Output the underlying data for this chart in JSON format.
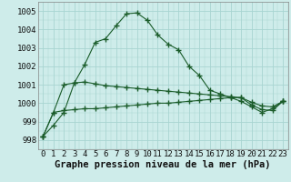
{
  "background_color": "#ceecea",
  "grid_color": "#a8d5d1",
  "line_color": "#1a5c2a",
  "marker_color": "#1a5c2a",
  "xlabel": "Graphe pression niveau de la mer (hPa)",
  "xlabel_fontsize": 7.5,
  "tick_fontsize": 6.5,
  "ylim": [
    997.5,
    1005.5
  ],
  "yticks": [
    998,
    999,
    1000,
    1001,
    1002,
    1003,
    1004,
    1005
  ],
  "xlim": [
    -0.5,
    23.5
  ],
  "xticks": [
    0,
    1,
    2,
    3,
    4,
    5,
    6,
    7,
    8,
    9,
    10,
    11,
    12,
    13,
    14,
    15,
    16,
    17,
    18,
    19,
    20,
    21,
    22,
    23
  ],
  "series1": [
    998.2,
    998.8,
    999.5,
    1001.1,
    1002.1,
    1003.3,
    1003.5,
    1004.2,
    1004.85,
    1004.9,
    1004.5,
    1003.7,
    1003.2,
    1002.9,
    1002.0,
    1001.5,
    1000.7,
    1000.5,
    1000.3,
    1000.1,
    999.8,
    999.5,
    999.7,
    1000.1
  ],
  "series2": [
    998.2,
    999.5,
    1001.0,
    1001.1,
    1001.15,
    1001.05,
    1000.95,
    1000.9,
    1000.85,
    1000.8,
    1000.75,
    1000.7,
    1000.65,
    1000.6,
    1000.55,
    1000.5,
    1000.45,
    1000.4,
    1000.35,
    1000.3,
    1000.05,
    999.85,
    999.8,
    1000.1
  ],
  "series3": [
    998.2,
    999.5,
    999.6,
    999.65,
    999.7,
    999.7,
    999.75,
    999.8,
    999.85,
    999.9,
    999.95,
    1000.0,
    1000.0,
    1000.05,
    1000.1,
    1000.15,
    1000.2,
    1000.25,
    1000.3,
    1000.3,
    999.9,
    999.65,
    999.6,
    1000.1
  ]
}
